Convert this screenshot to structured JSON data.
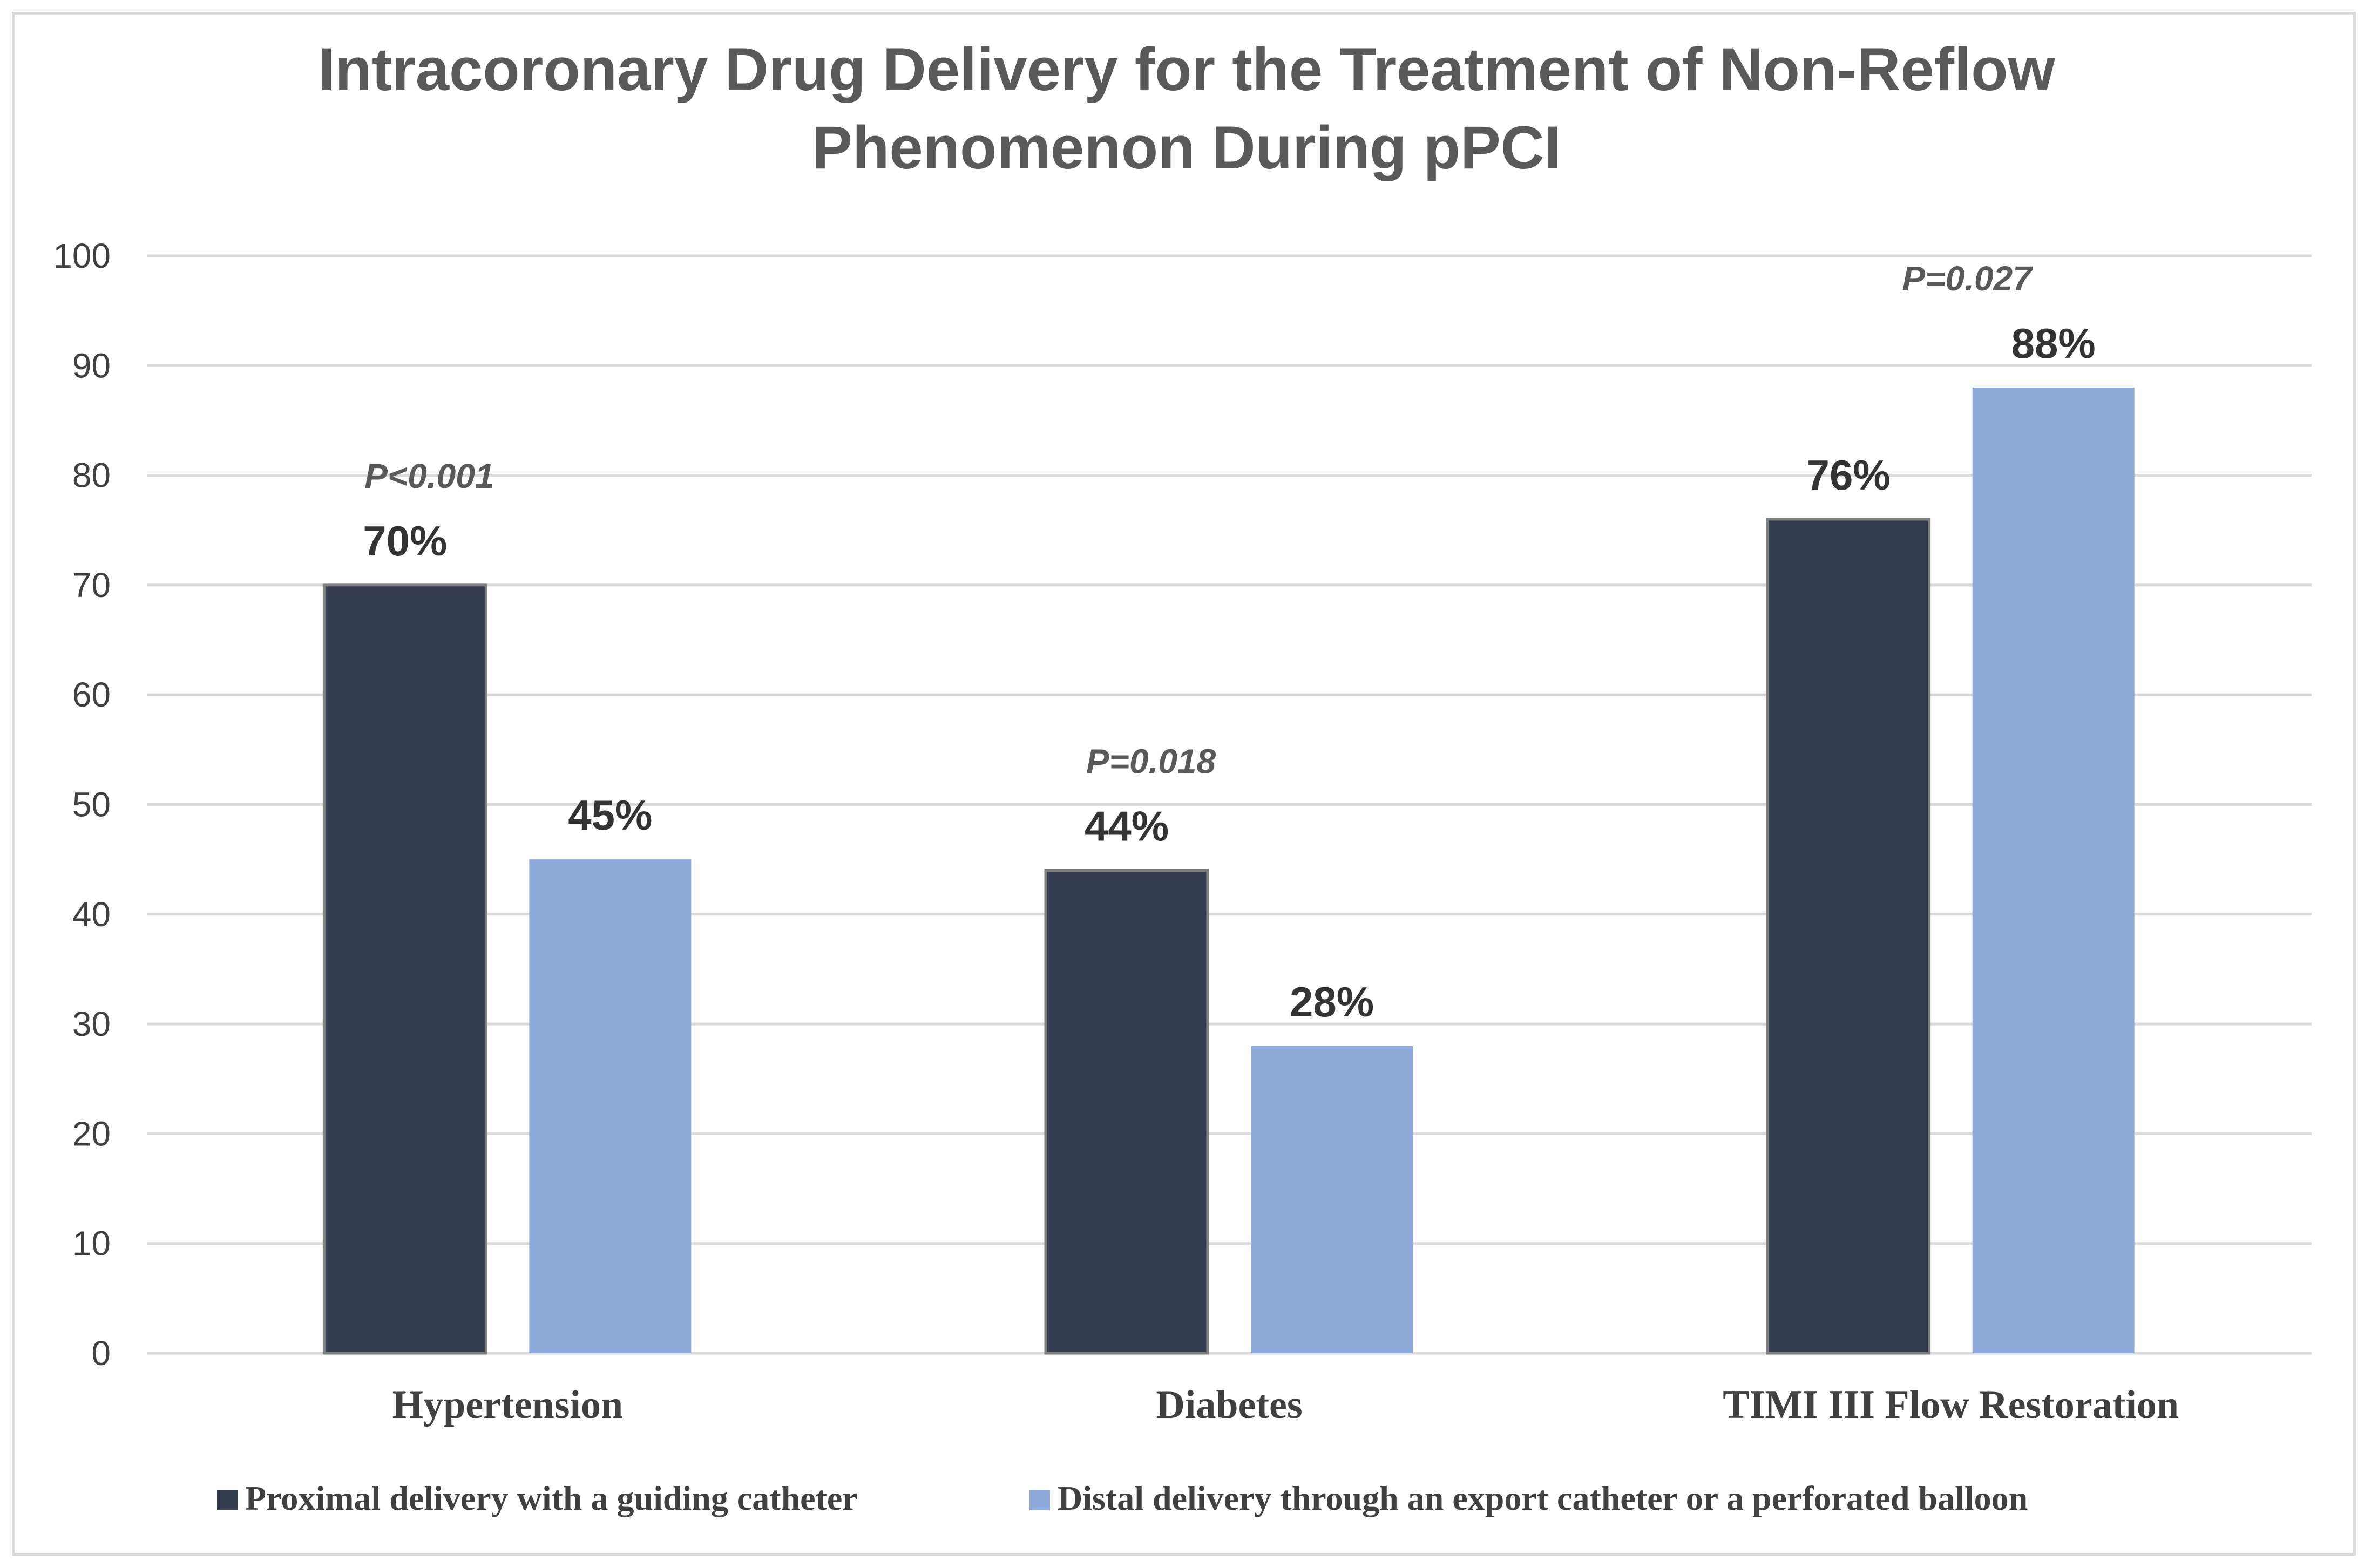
{
  "chart_data": {
    "type": "bar",
    "title_lines": [
      "Intracoronary Drug Delivery for the Treatment of Non-Reflow",
      "Phenomenon During pPCI"
    ],
    "xlabel": "",
    "ylabel": "",
    "ylim": [
      0,
      100
    ],
    "yticks": [
      0,
      10,
      20,
      30,
      40,
      50,
      60,
      70,
      80,
      90,
      100
    ],
    "grid": true,
    "legend_position": "bottom",
    "categories": [
      "Hypertension",
      "Diabetes",
      "TIMI III Flow Restoration"
    ],
    "series": [
      {
        "name": "Proximal delivery with a guiding catheter",
        "color": "#333d4f",
        "values": [
          70,
          44,
          76
        ],
        "labels": [
          "70%",
          "44%",
          "76%"
        ]
      },
      {
        "name": "Distal delivery through an export catheter or a perforated balloon",
        "color": "#8eaadb",
        "values": [
          45,
          28,
          88
        ],
        "labels": [
          "45%",
          "28%",
          "88%"
        ]
      }
    ],
    "p_values": [
      "P<0.001",
      "P=0.018",
      "P=0.027"
    ]
  }
}
